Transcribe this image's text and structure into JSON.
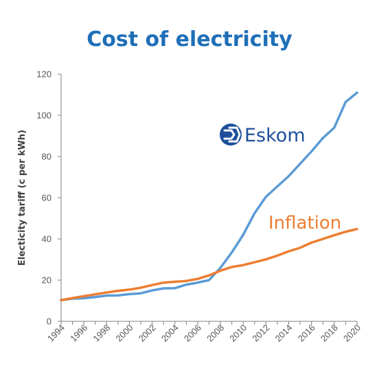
{
  "chart_data": {
    "type": "line",
    "title": "Cost of electricity",
    "xlabel": "",
    "ylabel": "Electicity tariff (c per kWh)",
    "xlim": [
      1994,
      2020
    ],
    "ylim": [
      0,
      120
    ],
    "x_ticks": [
      "1994",
      "1996",
      "1998",
      "2000",
      "2002",
      "2004",
      "2006",
      "2008",
      "2010",
      "2012",
      "2014",
      "2016",
      "2018",
      "2020"
    ],
    "y_ticks": [
      "0",
      "20",
      "40",
      "60",
      "80",
      "100",
      "120"
    ],
    "grid": false,
    "x": [
      1994,
      1995,
      1996,
      1997,
      1998,
      1999,
      2000,
      2001,
      2002,
      2003,
      2004,
      2005,
      2006,
      2007,
      2008,
      2009,
      2010,
      2011,
      2012,
      2013,
      2014,
      2015,
      2016,
      2017,
      2018,
      2019,
      2020
    ],
    "series": [
      {
        "name": "Eskom",
        "color": "#5b9bd5",
        "values": [
          10.3,
          11.0,
          11.2,
          11.8,
          12.5,
          12.6,
          13.2,
          13.6,
          15.0,
          16.0,
          16.1,
          17.8,
          18.8,
          20.0,
          26.0,
          33.5,
          42.0,
          52.5,
          60.5,
          65.5,
          70.5,
          76.5,
          82.5,
          89.0,
          94.0,
          106.5,
          111.0
        ]
      },
      {
        "name": "Inflation",
        "color": "#ed7d31",
        "values": [
          10.3,
          11.3,
          12.2,
          13.1,
          14.0,
          14.8,
          15.4,
          16.3,
          17.6,
          18.8,
          19.2,
          19.6,
          20.6,
          22.3,
          24.6,
          26.4,
          27.3,
          28.7,
          30.1,
          31.9,
          34.0,
          35.7,
          38.2,
          40.0,
          41.8,
          43.5,
          44.8
        ]
      }
    ]
  },
  "labels": {
    "eskom": "Eskom",
    "inflation": "Inflation"
  }
}
